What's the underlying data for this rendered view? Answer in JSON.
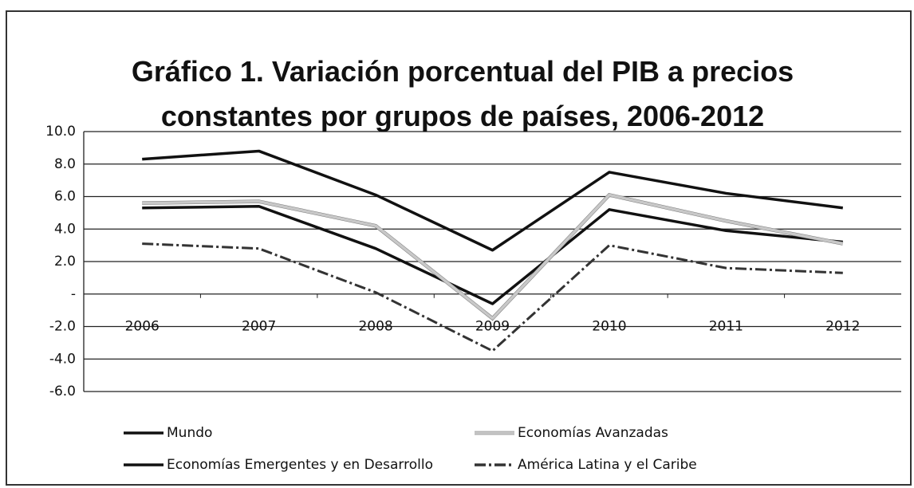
{
  "chart_data": {
    "type": "line",
    "title": "Gráfico 1. Variación porcentual del PIB a precios constantes por grupos de países, 2006-2012",
    "categories": [
      "2006",
      "2007",
      "2008",
      "2009",
      "2010",
      "2011",
      "2012"
    ],
    "series": [
      {
        "name": "Mundo",
        "color": "#111111",
        "values": [
          5.3,
          5.4,
          2.8,
          -0.6,
          5.2,
          3.9,
          3.2
        ]
      },
      {
        "name": "Economías Avanzadas",
        "color": "#c8c8c8",
        "values": [
          5.6,
          5.7,
          4.2,
          -1.5,
          6.1,
          4.5,
          3.1
        ]
      },
      {
        "name": "Economías Emergentes y en Desarrollo",
        "color": "#111111",
        "values": [
          8.3,
          8.8,
          6.1,
          2.7,
          7.5,
          6.2,
          5.3
        ]
      },
      {
        "name": "América Latina y el Caribe",
        "color": "#333333",
        "dashed": true,
        "values": [
          3.1,
          2.8,
          0.1,
          -3.5,
          3.0,
          1.6,
          1.3
        ]
      }
    ],
    "ylim": [
      -6,
      10
    ],
    "yticks": [
      {
        "value": -6,
        "label": "-6.0"
      },
      {
        "value": -4,
        "label": "-4.0"
      },
      {
        "value": -2,
        "label": "-2.0"
      },
      {
        "value": 0,
        "label": "-"
      },
      {
        "value": 2,
        "label": "2.0"
      },
      {
        "value": 4,
        "label": "4.0"
      },
      {
        "value": 6,
        "label": "6.0"
      },
      {
        "value": 8,
        "label": "8.0"
      },
      {
        "value": 10,
        "label": "10.0"
      }
    ],
    "grid": true,
    "legend": "bottom"
  }
}
